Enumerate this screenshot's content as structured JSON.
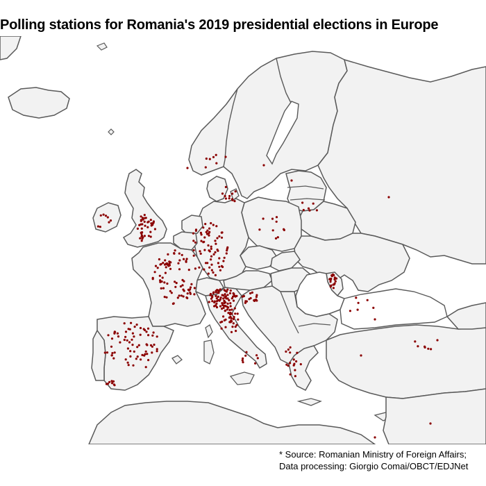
{
  "title": "Polling stations for Romania's 2019 presidential elections in Europe",
  "caption": {
    "line1": "* Source: Romanian Ministry of Foreign Affairs;",
    "line2": "Data processing: Giorgio Comai/OBCT/EDJNet"
  },
  "colors": {
    "land": "#f2f2f2",
    "border": "#595959",
    "station": "#8b0000",
    "background": "#ffffff"
  },
  "legend_symbol": "polling-station-dot"
}
